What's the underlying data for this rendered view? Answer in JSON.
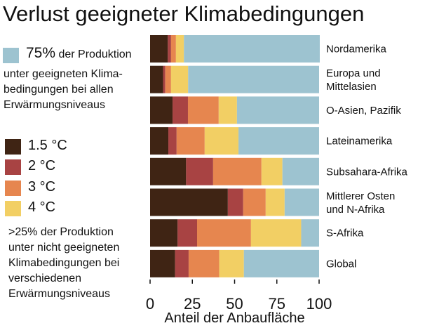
{
  "chart_data": {
    "type": "bar",
    "orientation": "horizontal",
    "stacked": true,
    "title": "Verlust geeigneter Klimabedingungen",
    "xlabel": "Anteil der Anbaufläche",
    "ylabel": "",
    "xlim": [
      0,
      100
    ],
    "xticks": [
      "0",
      "25",
      "50",
      "75",
      "100"
    ],
    "grid": false,
    "legend_placement": "left",
    "categories": [
      "Nordamerika",
      "Europa und\nMittelasien",
      "O-Asien, Pazifik",
      "Lateinamerika",
      "Subsahara-Afrika",
      "Mittlerer Osten\nund N-Afrika",
      "S-Afrika",
      "Global"
    ],
    "series": [
      {
        "name": "1.5 °C",
        "color": "#3f2414",
        "values": [
          10.5,
          7.7,
          13.3,
          10.8,
          21.3,
          46.0,
          16.3,
          14.8
        ]
      },
      {
        "name": "2 °C",
        "color": "#a84343",
        "values": [
          1.9,
          1.3,
          9.1,
          4.9,
          16.0,
          9.1,
          11.5,
          8.0
        ]
      },
      {
        "name": "3 °C",
        "color": "#e6864f",
        "values": [
          2.9,
          3.4,
          18.2,
          16.6,
          28.6,
          13.3,
          31.9,
          18.1
        ]
      },
      {
        "name": "4 °C",
        "color": "#f2cf64",
        "values": [
          4.7,
          10.1,
          10.8,
          20.0,
          12.4,
          11.2,
          29.7,
          14.6
        ]
      },
      {
        "name": "geeignet bei allen Erwärmungsniveaus",
        "color": "#9dc3d0",
        "values": [
          80.4,
          77.5,
          48.6,
          47.7,
          21.7,
          20.4,
          10.6,
          44.5
        ]
      }
    ]
  },
  "legend": {
    "suitable_pct": "75%",
    "suitable_rest": " der Produktion",
    "suitable_lines": [
      "unter geeigneten Klima-",
      "bedingungen bei allen",
      "Erwärmungsniveaus"
    ],
    "items": [
      "1.5 °C",
      "2 °C",
      "3 °C",
      "4 °C"
    ],
    "unsuitable_lines": [
      ">25% der Produktion",
      "unter nicht geeigneten",
      "Klimabedingungen bei",
      "verschiedenen",
      "Erwärmungsniveaus"
    ]
  }
}
